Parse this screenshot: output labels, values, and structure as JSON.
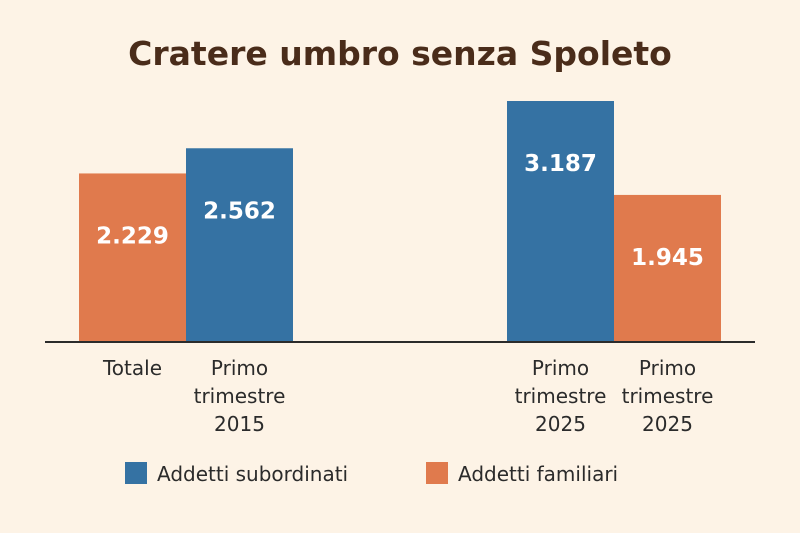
{
  "chart_data": {
    "type": "bar",
    "title": "Cratere umbro senza Spoleto",
    "xlabel": "",
    "ylabel": "",
    "ylim": [
      0,
      3500
    ],
    "grid": false,
    "legend_position": "bottom",
    "colors": {
      "Addetti subordinati": "#3572a3",
      "Addetti familiari": "#e07a4d"
    },
    "groups": [
      {
        "bars": [
          {
            "category": "Totale",
            "series": "Addetti familiari",
            "value": 2229,
            "value_label": "2.229"
          },
          {
            "category": "Primo trimestre 2015",
            "series": "Addetti subordinati",
            "value": 2562,
            "value_label": "2.562"
          }
        ]
      },
      {
        "bars": [
          {
            "category": "Primo trimestre 2025",
            "series": "Addetti subordinati",
            "value": 3187,
            "value_label": "3.187"
          },
          {
            "category": "Primo trimestre 2025",
            "series": "Addetti familiari",
            "value": 1945,
            "value_label": "1.945"
          }
        ]
      }
    ],
    "legend": [
      {
        "label": "Addetti subordinati",
        "color": "#3572a3"
      },
      {
        "label": "Addetti familiari",
        "color": "#e07a4d"
      }
    ]
  }
}
